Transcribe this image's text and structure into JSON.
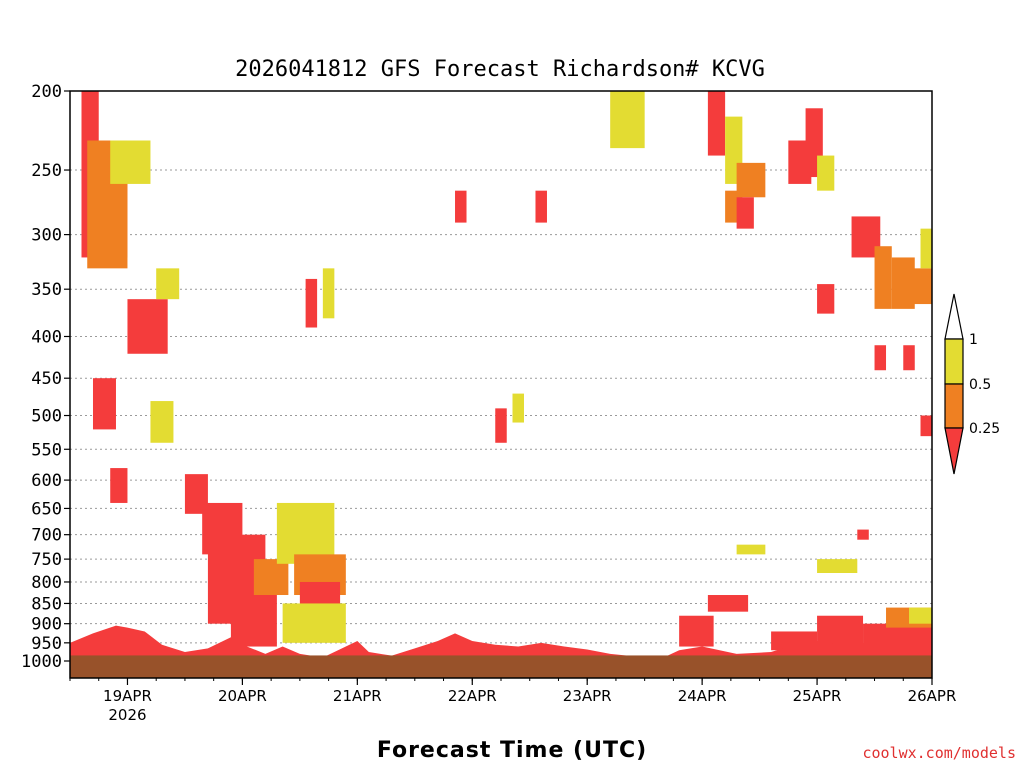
{
  "chart_data": {
    "type": "heatmap",
    "title": "2026041812 GFS Forecast Richardson# KCVG",
    "xlabel": "Forecast Time (UTC)",
    "ylabel": "",
    "x_ticks": [
      {
        "label": "19APR",
        "sub": "2026",
        "day": 19
      },
      {
        "label": "20APR",
        "sub": "",
        "day": 20
      },
      {
        "label": "21APR",
        "sub": "",
        "day": 21
      },
      {
        "label": "22APR",
        "sub": "",
        "day": 22
      },
      {
        "label": "23APR",
        "sub": "",
        "day": 23
      },
      {
        "label": "24APR",
        "sub": "",
        "day": 24
      },
      {
        "label": "25APR",
        "sub": "",
        "day": 25
      },
      {
        "label": "26APR",
        "sub": "",
        "day": 26
      }
    ],
    "xlim": [
      "2026-04-18T12Z",
      "2026-04-26T00Z"
    ],
    "y_ticks": [
      200,
      250,
      300,
      350,
      400,
      450,
      500,
      550,
      600,
      650,
      700,
      750,
      800,
      850,
      900,
      950,
      1000
    ],
    "y_unit": "hPa",
    "ylim": [
      1000,
      200
    ],
    "y_scale": "log-pressure",
    "y_inverted": true,
    "grid": "dotted horizontal",
    "legend": {
      "placement": "right",
      "levels": [
        {
          "label": "1",
          "color": "#ffffff"
        },
        {
          "label": "0.5",
          "color": "#e3dc32"
        },
        {
          "label": "0.25",
          "color": "#ef8022"
        },
        {
          "label": "",
          "color": "#f43c3c"
        }
      ]
    },
    "colors": {
      "ri_0_5_to_1": "#e3dc32",
      "ri_0_25_to_0_5": "#ef8022",
      "ri_below_0_25": "#f43c3c",
      "ground": "#98522a"
    },
    "regions": [
      {
        "day": 18.6,
        "day_end": 19.0,
        "p_top": 230,
        "p_bot": 320,
        "ri": "lt025"
      },
      {
        "day": 18.6,
        "day_end": 18.75,
        "p_top": 200,
        "p_bot": 260,
        "ri": "lt025"
      },
      {
        "day": 18.65,
        "day_end": 19.0,
        "p_top": 230,
        "p_bot": 330,
        "ri": "025_05"
      },
      {
        "day": 18.85,
        "day_end": 19.2,
        "p_top": 230,
        "p_bot": 260,
        "ri": "05_1"
      },
      {
        "day": 19.0,
        "day_end": 19.35,
        "p_top": 360,
        "p_bot": 420,
        "ri": "lt025"
      },
      {
        "day": 18.7,
        "day_end": 18.9,
        "p_top": 450,
        "p_bot": 520,
        "ri": "lt025"
      },
      {
        "day": 18.85,
        "day_end": 19.0,
        "p_top": 580,
        "p_bot": 640,
        "ri": "lt025"
      },
      {
        "day": 19.2,
        "day_end": 19.4,
        "p_top": 480,
        "p_bot": 540,
        "ri": "05_1"
      },
      {
        "day": 19.5,
        "day_end": 19.7,
        "p_top": 590,
        "p_bot": 660,
        "ri": "lt025"
      },
      {
        "day": 19.65,
        "day_end": 20.0,
        "p_top": 640,
        "p_bot": 740,
        "ri": "lt025"
      },
      {
        "day": 19.7,
        "day_end": 20.2,
        "p_top": 700,
        "p_bot": 900,
        "ri": "lt025"
      },
      {
        "day": 19.9,
        "day_end": 20.3,
        "p_top": 770,
        "p_bot": 960,
        "ri": "lt025"
      },
      {
        "day": 20.1,
        "day_end": 20.4,
        "p_top": 750,
        "p_bot": 830,
        "ri": "025_05"
      },
      {
        "day": 20.3,
        "day_end": 20.8,
        "p_top": 640,
        "p_bot": 760,
        "ri": "05_1"
      },
      {
        "day": 20.45,
        "day_end": 20.9,
        "p_top": 740,
        "p_bot": 830,
        "ri": "025_05"
      },
      {
        "day": 20.5,
        "day_end": 20.85,
        "p_top": 800,
        "p_bot": 880,
        "ri": "lt025"
      },
      {
        "day": 20.35,
        "day_end": 20.9,
        "p_top": 850,
        "p_bot": 950,
        "ri": "05_1"
      },
      {
        "day": 19.25,
        "day_end": 19.45,
        "p_top": 330,
        "p_bot": 360,
        "ri": "05_1"
      },
      {
        "day": 20.55,
        "day_end": 20.65,
        "p_top": 340,
        "p_bot": 390,
        "ri": "lt025"
      },
      {
        "day": 20.7,
        "day_end": 20.8,
        "p_top": 330,
        "p_bot": 380,
        "ri": "05_1"
      },
      {
        "day": 21.85,
        "day_end": 21.95,
        "p_top": 265,
        "p_bot": 290,
        "ri": "lt025"
      },
      {
        "day": 22.55,
        "day_end": 22.65,
        "p_top": 265,
        "p_bot": 290,
        "ri": "lt025"
      },
      {
        "day": 22.2,
        "day_end": 22.3,
        "p_top": 490,
        "p_bot": 540,
        "ri": "lt025"
      },
      {
        "day": 22.35,
        "day_end": 22.45,
        "p_top": 470,
        "p_bot": 510,
        "ri": "05_1"
      },
      {
        "day": 23.2,
        "day_end": 23.5,
        "p_top": 200,
        "p_bot": 235,
        "ri": "05_1"
      },
      {
        "day": 24.05,
        "day_end": 24.2,
        "p_top": 200,
        "p_bot": 240,
        "ri": "lt025"
      },
      {
        "day": 24.2,
        "day_end": 24.35,
        "p_top": 215,
        "p_bot": 260,
        "ri": "05_1"
      },
      {
        "day": 24.3,
        "day_end": 24.55,
        "p_top": 245,
        "p_bot": 270,
        "ri": "025_05"
      },
      {
        "day": 24.75,
        "day_end": 24.95,
        "p_top": 230,
        "p_bot": 260,
        "ri": "lt025"
      },
      {
        "day": 24.9,
        "day_end": 25.05,
        "p_top": 210,
        "p_bot": 255,
        "ri": "lt025"
      },
      {
        "day": 25.0,
        "day_end": 25.15,
        "p_top": 240,
        "p_bot": 265,
        "ri": "05_1"
      },
      {
        "day": 24.2,
        "day_end": 24.35,
        "p_top": 265,
        "p_bot": 290,
        "ri": "025_05"
      },
      {
        "day": 24.3,
        "day_end": 24.45,
        "p_top": 270,
        "p_bot": 295,
        "ri": "lt025"
      },
      {
        "day": 25.3,
        "day_end": 25.55,
        "p_top": 285,
        "p_bot": 320,
        "ri": "lt025"
      },
      {
        "day": 25.5,
        "day_end": 25.65,
        "p_top": 310,
        "p_bot": 370,
        "ri": "025_05"
      },
      {
        "day": 25.65,
        "day_end": 25.85,
        "p_top": 320,
        "p_bot": 370,
        "ri": "025_05"
      },
      {
        "day": 25.75,
        "day_end": 26.0,
        "p_top": 330,
        "p_bot": 365,
        "ri": "025_05"
      },
      {
        "day": 25.9,
        "day_end": 26.0,
        "p_top": 295,
        "p_bot": 330,
        "ri": "05_1"
      },
      {
        "day": 25.0,
        "day_end": 25.15,
        "p_top": 345,
        "p_bot": 375,
        "ri": "lt025"
      },
      {
        "day": 25.5,
        "day_end": 25.6,
        "p_top": 410,
        "p_bot": 440,
        "ri": "lt025"
      },
      {
        "day": 25.75,
        "day_end": 25.85,
        "p_top": 410,
        "p_bot": 440,
        "ri": "lt025"
      },
      {
        "day": 25.9,
        "day_end": 26.0,
        "p_top": 500,
        "p_bot": 530,
        "ri": "lt025"
      },
      {
        "day": 25.35,
        "day_end": 25.45,
        "p_top": 690,
        "p_bot": 710,
        "ri": "lt025"
      },
      {
        "day": 24.3,
        "day_end": 24.55,
        "p_top": 720,
        "p_bot": 740,
        "ri": "05_1"
      },
      {
        "day": 25.0,
        "day_end": 25.35,
        "p_top": 750,
        "p_bot": 780,
        "ri": "05_1"
      },
      {
        "day": 24.05,
        "day_end": 24.4,
        "p_top": 830,
        "p_bot": 870,
        "ri": "lt025"
      },
      {
        "day": 23.8,
        "day_end": 24.1,
        "p_top": 880,
        "p_bot": 960,
        "ri": "lt025"
      },
      {
        "day": 24.6,
        "day_end": 25.0,
        "p_top": 920,
        "p_bot": 970,
        "ri": "lt025"
      },
      {
        "day": 25.0,
        "day_end": 25.4,
        "p_top": 880,
        "p_bot": 960,
        "ri": "lt025"
      },
      {
        "day": 25.4,
        "day_end": 26.0,
        "p_top": 900,
        "p_bot": 970,
        "ri": "lt025"
      },
      {
        "day": 25.6,
        "day_end": 26.0,
        "p_top": 860,
        "p_bot": 910,
        "ri": "025_05"
      },
      {
        "day": 25.8,
        "day_end": 26.0,
        "p_top": 860,
        "p_bot": 900,
        "ri": "05_1"
      }
    ],
    "boundary_layer_top_hpa": [
      [
        18.5,
        950
      ],
      [
        18.7,
        925
      ],
      [
        18.9,
        905
      ],
      [
        19.0,
        910
      ],
      [
        19.15,
        920
      ],
      [
        19.3,
        955
      ],
      [
        19.5,
        975
      ],
      [
        19.7,
        965
      ],
      [
        19.9,
        935
      ],
      [
        20.0,
        955
      ],
      [
        20.2,
        980
      ],
      [
        20.35,
        960
      ],
      [
        20.5,
        980
      ],
      [
        20.7,
        990
      ],
      [
        20.9,
        960
      ],
      [
        21.0,
        945
      ],
      [
        21.1,
        975
      ],
      [
        21.3,
        985
      ],
      [
        21.5,
        965
      ],
      [
        21.7,
        945
      ],
      [
        21.85,
        925
      ],
      [
        22.0,
        945
      ],
      [
        22.2,
        955
      ],
      [
        22.4,
        960
      ],
      [
        22.6,
        950
      ],
      [
        22.8,
        960
      ],
      [
        23.0,
        968
      ],
      [
        23.2,
        980
      ],
      [
        23.5,
        990
      ],
      [
        23.7,
        985
      ],
      [
        23.8,
        970
      ],
      [
        24.0,
        960
      ],
      [
        24.3,
        980
      ],
      [
        24.6,
        975
      ],
      [
        24.8,
        955
      ],
      [
        25.0,
        945
      ],
      [
        25.2,
        955
      ],
      [
        25.4,
        950
      ],
      [
        25.6,
        960
      ],
      [
        25.8,
        955
      ],
      [
        26.0,
        950
      ]
    ],
    "surface_hpa": 990,
    "credit": "coolwx.com/models"
  }
}
